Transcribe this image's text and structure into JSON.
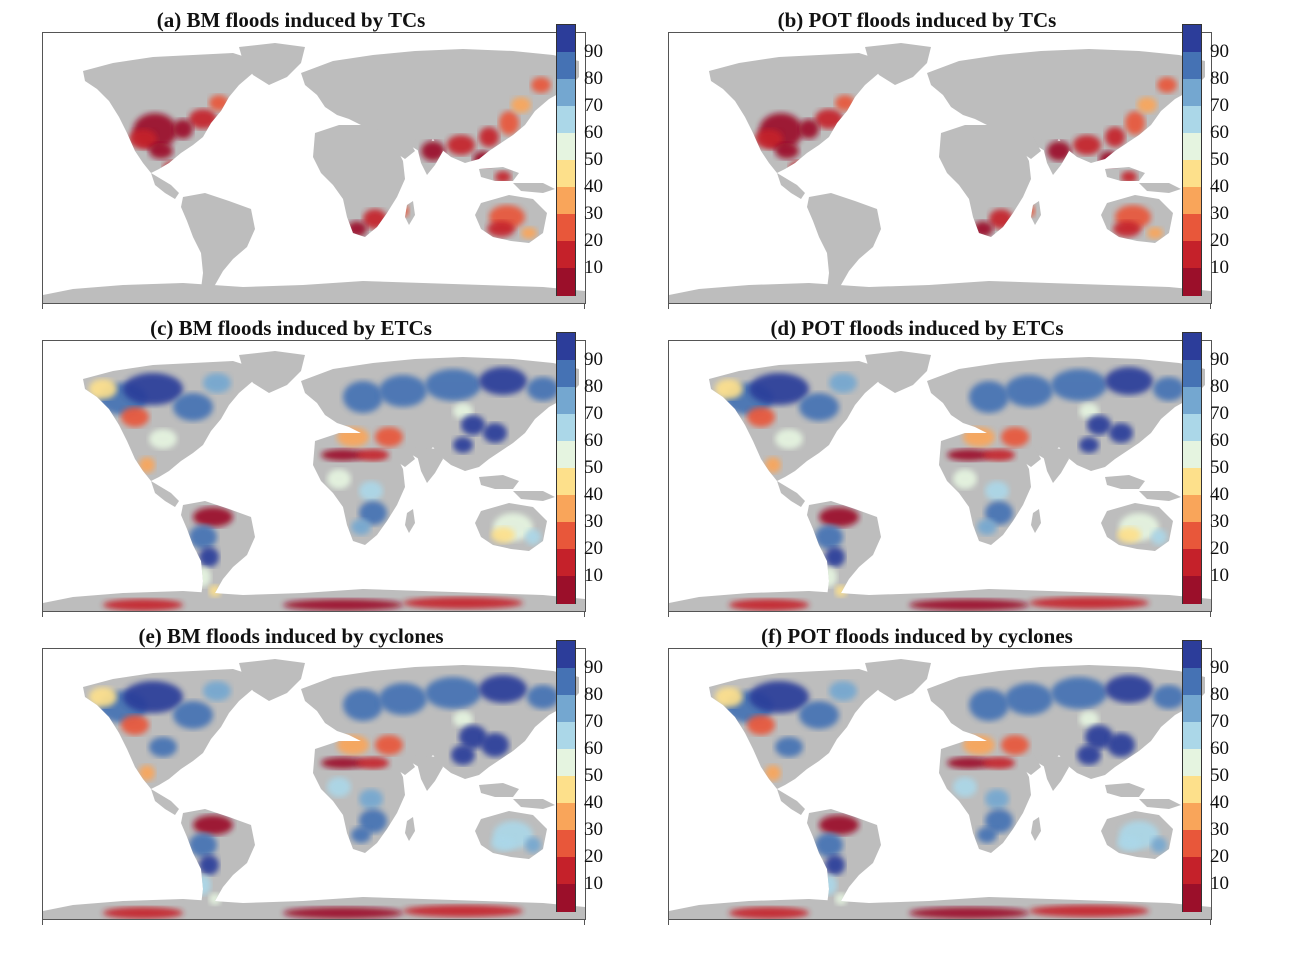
{
  "figure": {
    "colorbar": {
      "labels": [
        "90",
        "80",
        "70",
        "60",
        "50",
        "40",
        "30",
        "20",
        "10"
      ],
      "colors": [
        "#2c3d9a",
        "#4572b4",
        "#74a7d0",
        "#abd7e8",
        "#e5f4e0",
        "#fde08b",
        "#f9a55a",
        "#e8573a",
        "#c5212a",
        "#9b0f2a"
      ]
    },
    "panels": [
      {
        "title": "(a) BM floods induced by TCs",
        "pattern": "tc"
      },
      {
        "title": "(b) POT floods induced by TCs",
        "pattern": "tc"
      },
      {
        "title": "(c) BM floods induced by ETCs",
        "pattern": "etc"
      },
      {
        "title": "(d) POT floods induced by ETCs",
        "pattern": "etc"
      },
      {
        "title": "(e) BM floods induced by cyclones",
        "pattern": "cyc"
      },
      {
        "title": "(f) POT floods induced by cyclones",
        "pattern": "cyc"
      }
    ]
  }
}
